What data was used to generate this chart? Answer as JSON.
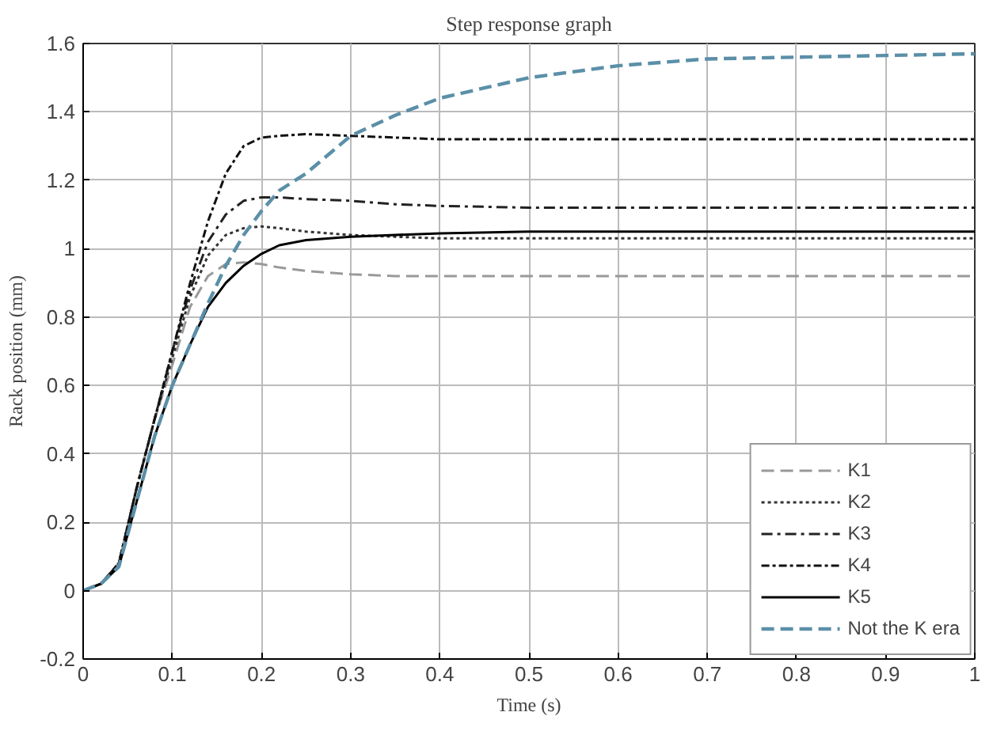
{
  "chart_data": {
    "type": "line",
    "title": "Step response graph",
    "xlabel": "Time (s)",
    "ylabel": "Rack position (mm)",
    "x": [
      0,
      0.01,
      0.02,
      0.04,
      0.06,
      0.08,
      0.1,
      0.12,
      0.14,
      0.16,
      0.18,
      0.2,
      0.22,
      0.25,
      0.3,
      0.35,
      0.4,
      0.5,
      0.6,
      0.7,
      0.8,
      0.9,
      1.0
    ],
    "series": [
      {
        "name": "K1",
        "color": "#999999",
        "line_style": "dashed",
        "values": [
          0,
          0.01,
          0.02,
          0.08,
          0.3,
          0.5,
          0.66,
          0.83,
          0.92,
          0.955,
          0.96,
          0.955,
          0.945,
          0.935,
          0.925,
          0.92,
          0.92,
          0.92,
          0.92,
          0.92,
          0.92,
          0.92,
          0.92
        ]
      },
      {
        "name": "K2",
        "color": "#333333",
        "line_style": "dotted",
        "values": [
          0,
          0.01,
          0.02,
          0.08,
          0.3,
          0.5,
          0.68,
          0.86,
          0.98,
          1.04,
          1.06,
          1.065,
          1.06,
          1.05,
          1.04,
          1.035,
          1.03,
          1.03,
          1.03,
          1.03,
          1.03,
          1.03,
          1.03
        ]
      },
      {
        "name": "K3",
        "color": "#222222",
        "line_style": "dashdot",
        "values": [
          0,
          0.01,
          0.02,
          0.08,
          0.3,
          0.5,
          0.7,
          0.88,
          1.02,
          1.1,
          1.14,
          1.15,
          1.15,
          1.145,
          1.14,
          1.13,
          1.125,
          1.12,
          1.12,
          1.12,
          1.12,
          1.12,
          1.12
        ]
      },
      {
        "name": "K4",
        "color": "#111111",
        "line_style": "dashdotdense",
        "values": [
          0,
          0.01,
          0.02,
          0.08,
          0.3,
          0.5,
          0.7,
          0.9,
          1.08,
          1.22,
          1.3,
          1.325,
          1.33,
          1.335,
          1.33,
          1.325,
          1.32,
          1.32,
          1.32,
          1.32,
          1.32,
          1.32,
          1.32
        ]
      },
      {
        "name": "K5",
        "color": "#000000",
        "line_style": "solid",
        "values": [
          0,
          0.01,
          0.02,
          0.07,
          0.26,
          0.45,
          0.6,
          0.72,
          0.83,
          0.9,
          0.95,
          0.985,
          1.01,
          1.025,
          1.035,
          1.04,
          1.045,
          1.05,
          1.05,
          1.05,
          1.05,
          1.05,
          1.05
        ]
      },
      {
        "name": "Not the K era",
        "color": "#5b8fa8",
        "line_style": "dashed",
        "values": [
          0,
          0.01,
          0.02,
          0.07,
          0.26,
          0.45,
          0.6,
          0.72,
          0.84,
          0.95,
          1.04,
          1.11,
          1.17,
          1.22,
          1.33,
          1.39,
          1.44,
          1.5,
          1.535,
          1.555,
          1.56,
          1.565,
          1.57
        ]
      }
    ],
    "xlim": [
      0,
      1
    ],
    "ylim": [
      -0.2,
      1.6
    ],
    "xticks": [
      0,
      0.1,
      0.2,
      0.3,
      0.4,
      0.5,
      0.6,
      0.7,
      0.8,
      0.9,
      1
    ],
    "yticks": [
      -0.2,
      0,
      0.2,
      0.4,
      0.6,
      0.8,
      1,
      1.2,
      1.4,
      1.6
    ],
    "grid": true,
    "legend": "bottom right"
  }
}
